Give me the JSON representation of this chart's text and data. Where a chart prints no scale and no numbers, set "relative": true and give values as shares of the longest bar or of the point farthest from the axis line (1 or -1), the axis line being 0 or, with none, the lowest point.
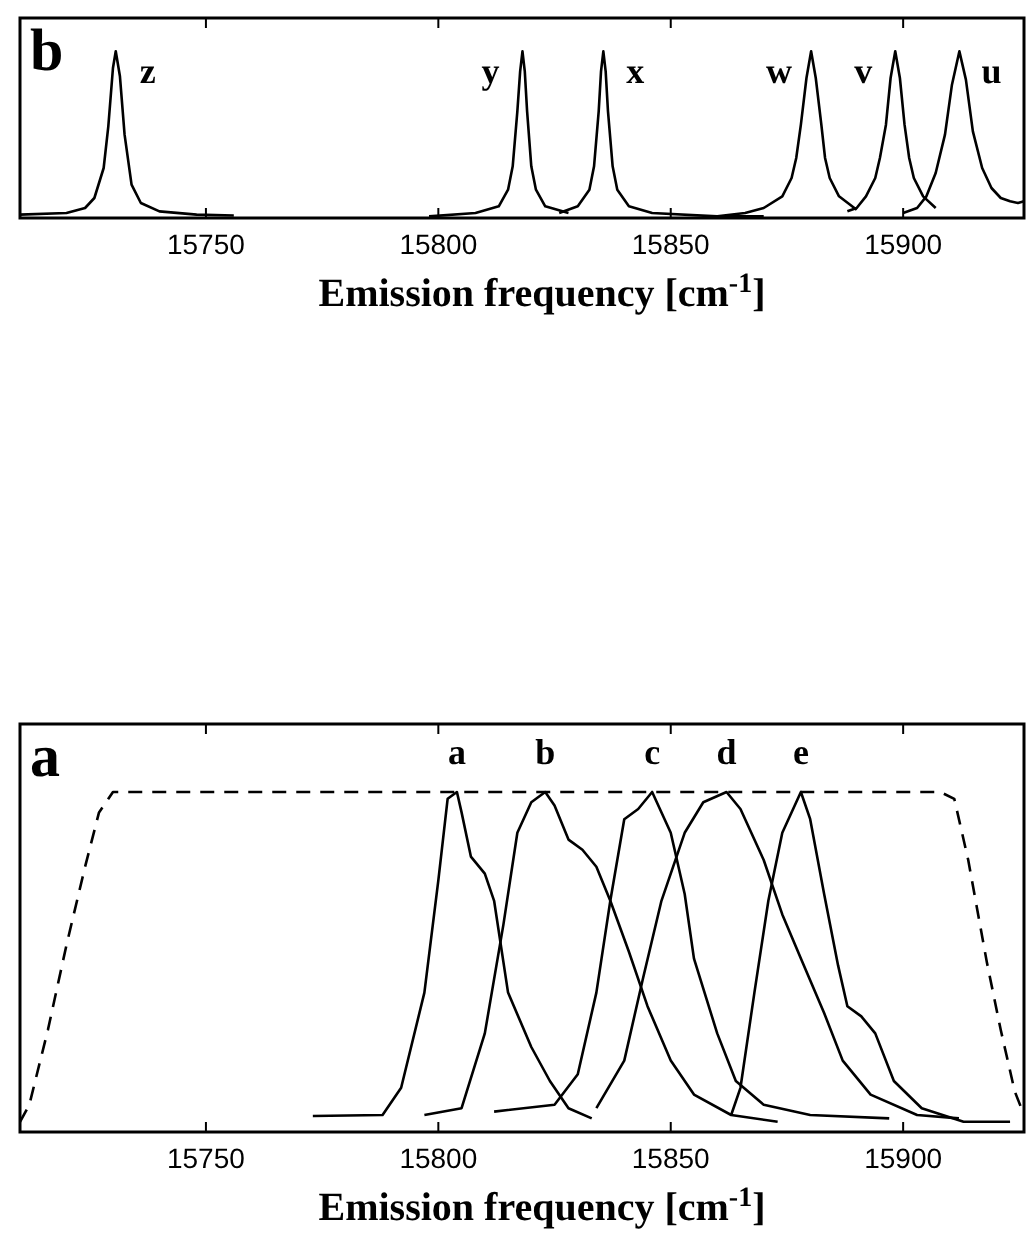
{
  "chart_data": [
    {
      "type": "line",
      "relative": true,
      "xlabel": "Emission frequency [cm$^{-1}$]",
      "xlim": [
        15710,
        15926
      ],
      "xticks": [
        15750,
        15800,
        15850,
        15900
      ],
      "grid": false,
      "legend": "top",
      "marker": "none",
      "line_style": "solid",
      "annotations": [
        "b"
      ],
      "series": [
        {
          "name": "z",
          "color": "#000000",
          "x": [
            15710,
            15720,
            15724,
            15726,
            15728,
            15729,
            15730,
            15730.6,
            15731.5,
            15732.5,
            15734,
            15736,
            15740,
            15748,
            15756
          ],
          "values": [
            0.02,
            0.03,
            0.06,
            0.12,
            0.3,
            0.55,
            0.9,
            1,
            0.85,
            0.5,
            0.2,
            0.09,
            0.04,
            0.02,
            0.015
          ]
        },
        {
          "name": "y",
          "color": "#000000",
          "x": [
            15798,
            15808,
            15813,
            15815,
            15816,
            15817,
            15817.6,
            15818.1,
            15818.6,
            15819.1,
            15820,
            15821,
            15823,
            15828
          ],
          "values": [
            0.01,
            0.03,
            0.07,
            0.17,
            0.31,
            0.64,
            0.88,
            1,
            0.88,
            0.64,
            0.31,
            0.17,
            0.07,
            0.03
          ]
        },
        {
          "name": "x",
          "color": "#000000",
          "x": [
            15826,
            15830,
            15832.5,
            15833.5,
            15834.5,
            15835,
            15835.5,
            15836,
            15836.5,
            15837.5,
            15838.5,
            15841,
            15846,
            15860,
            15870
          ],
          "values": [
            0.03,
            0.07,
            0.17,
            0.31,
            0.64,
            0.88,
            1,
            0.88,
            0.64,
            0.31,
            0.17,
            0.07,
            0.03,
            0.01,
            0.01
          ]
        },
        {
          "name": "w",
          "color": "#000000",
          "x": [
            15860,
            15866,
            15870,
            15874,
            15876,
            15877,
            15878,
            15879.2,
            15880.2,
            15881.2,
            15882.4,
            15883.2,
            15884.2,
            15886.2,
            15890
          ],
          "values": [
            0.01,
            0.03,
            0.06,
            0.13,
            0.24,
            0.36,
            0.56,
            0.84,
            1,
            0.84,
            0.56,
            0.36,
            0.24,
            0.13,
            0.05
          ]
        },
        {
          "name": "v",
          "color": "#000000",
          "x": [
            15888,
            15890,
            15892,
            15894,
            15895,
            15896.3,
            15897.3,
            15898.3,
            15899.3,
            15900.3,
            15901.3,
            15902.3,
            15904.3,
            15907
          ],
          "values": [
            0.04,
            0.06,
            0.13,
            0.24,
            0.36,
            0.56,
            0.84,
            1,
            0.84,
            0.56,
            0.36,
            0.24,
            0.13,
            0.06
          ]
        },
        {
          "name": "u",
          "color": "#000000",
          "x": [
            15900,
            15903,
            15905,
            15907,
            15909,
            15910.5,
            15912.1,
            15913.5,
            15915,
            15917,
            15919,
            15921,
            15923,
            15924.7,
            15926
          ],
          "values": [
            0.03,
            0.06,
            0.13,
            0.27,
            0.5,
            0.8,
            1,
            0.83,
            0.52,
            0.3,
            0.18,
            0.12,
            0.1,
            0.09,
            0.1
          ]
        }
      ]
    },
    {
      "type": "line",
      "relative": true,
      "xlabel": "Emission frequency [cm$^{-1}$]",
      "xlim": [
        15710,
        15926
      ],
      "xticks": [
        15750,
        15800,
        15850,
        15900
      ],
      "grid": false,
      "legend": "top",
      "marker": "none",
      "line_style": "solid",
      "annotations": [
        "a"
      ],
      "series": [
        {
          "color": "#000000",
          "line_style": "dashed",
          "x": [
            15710,
            15712,
            15716,
            15720,
            15724,
            15727,
            15730,
            15908,
            15911,
            15914,
            15918,
            15921,
            15924,
            15926
          ],
          "values": [
            0.03,
            0.08,
            0.3,
            0.55,
            0.78,
            0.94,
            1,
            1,
            0.98,
            0.8,
            0.5,
            0.3,
            0.12,
            0.05
          ]
        },
        {
          "name": "a",
          "color": "#000000",
          "x": [
            15773,
            15788,
            15792,
            15797,
            15800,
            15802,
            15804,
            15805,
            15807,
            15810,
            15812,
            15815,
            15820,
            15824,
            15828,
            15833
          ],
          "values": [
            0.047,
            0.05,
            0.13,
            0.41,
            0.74,
            0.98,
            1,
            0.94,
            0.81,
            0.76,
            0.68,
            0.41,
            0.25,
            0.15,
            0.07,
            0.04
          ]
        },
        {
          "name": "b",
          "color": "#000000",
          "x": [
            15797,
            15805,
            15810,
            15814,
            15817,
            15820,
            15823,
            15825,
            15828,
            15831,
            15834,
            15837,
            15841,
            15845,
            15850,
            15855,
            15863,
            15873
          ],
          "values": [
            0.05,
            0.07,
            0.29,
            0.61,
            0.88,
            0.97,
            1,
            0.96,
            0.86,
            0.83,
            0.78,
            0.68,
            0.53,
            0.37,
            0.21,
            0.11,
            0.05,
            0.03
          ]
        },
        {
          "name": "c",
          "color": "#000000",
          "x": [
            15812,
            15825,
            15830,
            15834,
            15837,
            15840,
            15843,
            15846,
            15850,
            15853,
            15855,
            15860,
            15864,
            15870,
            15880,
            15897
          ],
          "values": [
            0.06,
            0.08,
            0.17,
            0.41,
            0.68,
            0.92,
            0.95,
            1,
            0.88,
            0.7,
            0.51,
            0.29,
            0.15,
            0.08,
            0.05,
            0.04
          ]
        },
        {
          "name": "d",
          "color": "#000000",
          "x": [
            15834,
            15840,
            15844,
            15848,
            15853,
            15857,
            15862,
            15865,
            15870,
            15874,
            15878,
            15883,
            15887,
            15893,
            15903,
            15912
          ],
          "values": [
            0.07,
            0.21,
            0.45,
            0.68,
            0.88,
            0.97,
            1,
            0.95,
            0.8,
            0.64,
            0.51,
            0.35,
            0.21,
            0.11,
            0.05,
            0.04
          ]
        },
        {
          "name": "e",
          "color": "#000000",
          "x": [
            15863,
            15865,
            15868,
            15871,
            15874,
            15878,
            15880,
            15883,
            15886,
            15888,
            15891,
            15894,
            15898,
            15904,
            15913,
            15923
          ],
          "values": [
            0.05,
            0.13,
            0.41,
            0.68,
            0.88,
            1,
            0.92,
            0.7,
            0.49,
            0.37,
            0.34,
            0.29,
            0.15,
            0.07,
            0.03,
            0.03
          ]
        }
      ]
    }
  ]
}
